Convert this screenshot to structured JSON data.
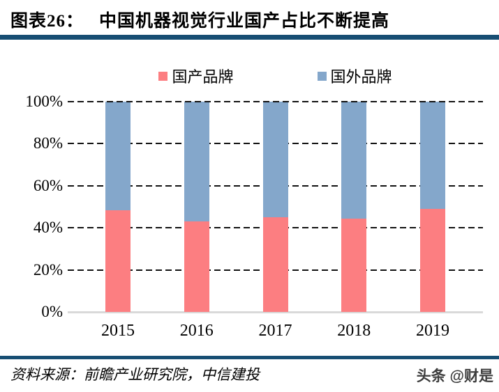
{
  "header": {
    "figure_label": "图表26：",
    "title": "中国机器视觉行业国产占比不断提高"
  },
  "chart_data": {
    "type": "bar",
    "stacked": true,
    "orientation": "vertical",
    "categories": [
      "2015",
      "2016",
      "2017",
      "2018",
      "2019"
    ],
    "series": [
      {
        "name": "国产品牌",
        "color": "#FC7E81",
        "values": [
          48.5,
          43,
          45,
          44.5,
          49
        ]
      },
      {
        "name": "国外品牌",
        "color": "#84A7CB",
        "values": [
          51.5,
          57,
          55,
          55.5,
          51
        ]
      }
    ],
    "title": "",
    "xlabel": "",
    "ylabel": "",
    "ylim": [
      0,
      100
    ],
    "y_tick_step": 20,
    "y_ticks": [
      "0%",
      "20%",
      "40%",
      "60%",
      "80%",
      "100%"
    ],
    "grid": "horizontal-dashed",
    "legend_position": "top"
  },
  "colors": {
    "rule": "#174E73",
    "axis_line": "#D9D9D9",
    "gridline": "#111111",
    "domestic_bar": "#FC7E81",
    "foreign_bar": "#84A7CB"
  },
  "footer": {
    "source": "资料来源：前瞻产业研究院，中信建投",
    "watermark": "头条 @财是"
  }
}
